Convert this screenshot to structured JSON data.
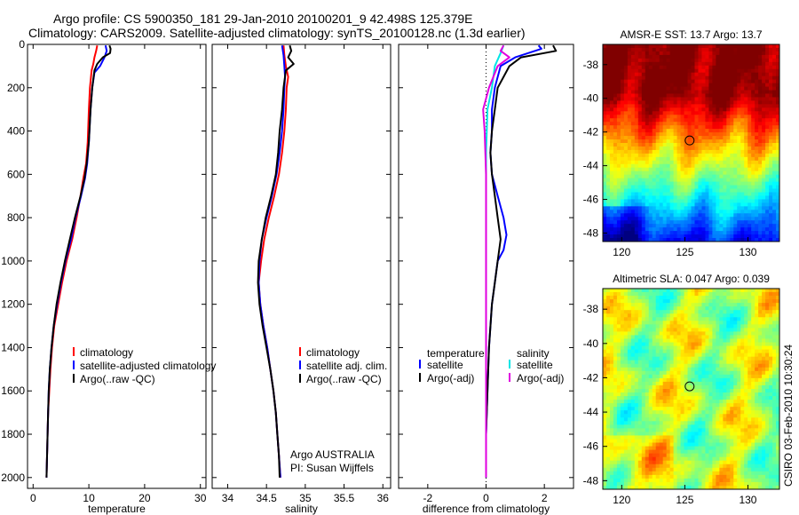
{
  "header": {
    "line1": "Argo profile: CS 5900350_181 29-Jan-2010 20100201_9 42.498S 125.379E",
    "line2": "Climatology: CARS2009. Satellite-adjusted climatology: synTS_20100128.nc (1.3d earlier)"
  },
  "footer_stamp": "CSIRO 03-Feb-2010 10:30:24",
  "colors": {
    "climatology": "#ff0000",
    "satellite": "#0000ff",
    "argo": "#000000",
    "sat_salinity": "#00e5e5",
    "argo_salinity": "#e000e0"
  },
  "chart_data": [
    {
      "type": "line",
      "id": "temperature",
      "xlabel": "temperature",
      "xlim": [
        -1,
        31
      ],
      "xticks": [
        0,
        10,
        20,
        30
      ],
      "ylim": [
        0,
        2050
      ],
      "yticks": [
        0,
        200,
        400,
        600,
        800,
        1000,
        1200,
        1400,
        1600,
        1800,
        2000
      ],
      "legend": [
        "climatology",
        "satellite-adjusted climatology",
        "Argo(..raw -QC)"
      ],
      "series": [
        {
          "name": "climatology",
          "color": "#ff0000",
          "points": [
            [
              11.5,
              5
            ],
            [
              11.3,
              30
            ],
            [
              11.0,
              60
            ],
            [
              10.8,
              90
            ],
            [
              10.5,
              120
            ],
            [
              10.2,
              200
            ],
            [
              10.0,
              300
            ],
            [
              9.8,
              450
            ],
            [
              9.5,
              550
            ],
            [
              9.0,
              620
            ],
            [
              8.5,
              700
            ],
            [
              7.8,
              800
            ],
            [
              7.0,
              900
            ],
            [
              6.0,
              1000
            ],
            [
              5.2,
              1100
            ],
            [
              4.5,
              1200
            ],
            [
              3.8,
              1300
            ],
            [
              3.4,
              1400
            ],
            [
              3.1,
              1500
            ],
            [
              2.9,
              1600
            ],
            [
              2.7,
              1700
            ],
            [
              2.6,
              1800
            ],
            [
              2.5,
              1900
            ],
            [
              2.4,
              2000
            ]
          ]
        },
        {
          "name": "satellite",
          "color": "#0000ff",
          "points": [
            [
              13.0,
              5
            ],
            [
              13.2,
              30
            ],
            [
              12.8,
              60
            ],
            [
              12.0,
              100
            ],
            [
              11.0,
              130
            ],
            [
              10.6,
              200
            ],
            [
              10.3,
              300
            ],
            [
              10.0,
              450
            ],
            [
              9.7,
              550
            ],
            [
              9.3,
              620
            ],
            [
              8.6,
              700
            ],
            [
              7.6,
              800
            ],
            [
              6.8,
              900
            ],
            [
              5.8,
              1000
            ],
            [
              5.0,
              1100
            ],
            [
              4.3,
              1200
            ],
            [
              3.7,
              1300
            ],
            [
              3.3,
              1400
            ],
            [
              3.0,
              1500
            ],
            [
              2.8,
              1600
            ],
            [
              2.7,
              1700
            ],
            [
              2.6,
              1800
            ],
            [
              2.5,
              1900
            ],
            [
              2.4,
              2000
            ]
          ]
        },
        {
          "name": "Argo(..raw -QC)",
          "color": "#000000",
          "points": [
            [
              13.7,
              5
            ],
            [
              13.9,
              20
            ],
            [
              13.8,
              40
            ],
            [
              12.5,
              60
            ],
            [
              11.5,
              90
            ],
            [
              11.0,
              120
            ],
            [
              10.6,
              200
            ],
            [
              10.3,
              300
            ],
            [
              10.0,
              450
            ],
            [
              9.6,
              550
            ],
            [
              9.2,
              620
            ],
            [
              8.5,
              700
            ],
            [
              7.5,
              800
            ],
            [
              6.6,
              900
            ],
            [
              5.7,
              1000
            ],
            [
              4.9,
              1100
            ],
            [
              4.2,
              1200
            ],
            [
              3.7,
              1300
            ],
            [
              3.3,
              1400
            ],
            [
              3.0,
              1500
            ],
            [
              2.8,
              1600
            ],
            [
              2.7,
              1700
            ],
            [
              2.6,
              1800
            ],
            [
              2.5,
              1900
            ],
            [
              2.4,
              2000
            ]
          ]
        }
      ]
    },
    {
      "type": "line",
      "id": "salinity",
      "xlabel": "salinity",
      "xlim": [
        33.8,
        36.1
      ],
      "xticks": [
        34,
        34.5,
        35,
        35.5,
        36
      ],
      "ylim": [
        0,
        2050
      ],
      "legend": [
        "climatology",
        "satellite adj. clim.",
        "Argo(..raw -QC)"
      ],
      "annotation": [
        "Argo AUSTRALIA",
        "PI: Susan Wijffels"
      ],
      "series": [
        {
          "name": "climatology",
          "color": "#ff0000",
          "points": [
            [
              34.72,
              5
            ],
            [
              34.73,
              50
            ],
            [
              34.75,
              100
            ],
            [
              34.78,
              150
            ],
            [
              34.76,
              200
            ],
            [
              34.75,
              300
            ],
            [
              34.73,
              400
            ],
            [
              34.7,
              500
            ],
            [
              34.66,
              600
            ],
            [
              34.6,
              700
            ],
            [
              34.53,
              800
            ],
            [
              34.47,
              900
            ],
            [
              34.43,
              1000
            ],
            [
              34.4,
              1100
            ],
            [
              34.42,
              1200
            ],
            [
              34.46,
              1300
            ],
            [
              34.51,
              1400
            ],
            [
              34.55,
              1500
            ],
            [
              34.59,
              1600
            ],
            [
              34.62,
              1700
            ],
            [
              34.64,
              1800
            ],
            [
              34.66,
              1900
            ],
            [
              34.68,
              2000
            ]
          ]
        },
        {
          "name": "satellite",
          "color": "#0000ff",
          "points": [
            [
              34.7,
              5
            ],
            [
              34.72,
              50
            ],
            [
              34.73,
              100
            ],
            [
              34.74,
              150
            ],
            [
              34.73,
              200
            ],
            [
              34.72,
              300
            ],
            [
              34.7,
              400
            ],
            [
              34.67,
              500
            ],
            [
              34.63,
              600
            ],
            [
              34.57,
              700
            ],
            [
              34.5,
              800
            ],
            [
              34.44,
              900
            ],
            [
              34.41,
              1000
            ],
            [
              34.4,
              1100
            ],
            [
              34.42,
              1200
            ],
            [
              34.46,
              1300
            ],
            [
              34.51,
              1400
            ],
            [
              34.55,
              1500
            ],
            [
              34.59,
              1600
            ],
            [
              34.62,
              1700
            ],
            [
              34.64,
              1800
            ],
            [
              34.66,
              1900
            ],
            [
              34.68,
              2000
            ]
          ]
        },
        {
          "name": "Argo(..raw -QC)",
          "color": "#000000",
          "points": [
            [
              34.8,
              5
            ],
            [
              34.82,
              30
            ],
            [
              34.78,
              60
            ],
            [
              34.85,
              90
            ],
            [
              34.75,
              120
            ],
            [
              34.72,
              200
            ],
            [
              34.7,
              300
            ],
            [
              34.67,
              400
            ],
            [
              34.65,
              500
            ],
            [
              34.62,
              600
            ],
            [
              34.56,
              700
            ],
            [
              34.49,
              800
            ],
            [
              34.44,
              900
            ],
            [
              34.4,
              1000
            ],
            [
              34.39,
              1100
            ],
            [
              34.41,
              1200
            ],
            [
              34.45,
              1300
            ],
            [
              34.5,
              1400
            ],
            [
              34.55,
              1500
            ],
            [
              34.59,
              1600
            ],
            [
              34.62,
              1700
            ],
            [
              34.64,
              1800
            ],
            [
              34.66,
              1900
            ],
            [
              34.67,
              2000
            ]
          ]
        }
      ]
    },
    {
      "type": "line",
      "id": "difference",
      "xlabel": "difference from climatology",
      "xlim": [
        -3,
        3
      ],
      "xticks": [
        -2,
        0,
        2
      ],
      "ylim": [
        0,
        2050
      ],
      "legend_left_title": "temperature",
      "legend_left": [
        "satellite",
        "Argo(-adj)"
      ],
      "legend_right_title": "salinity",
      "legend_right": [
        "satellite",
        "Argo(-adj)"
      ],
      "series": [
        {
          "name": "temperature satellite",
          "color": "#0000ff",
          "points": [
            [
              1.8,
              5
            ],
            [
              1.9,
              20
            ],
            [
              1.0,
              60
            ],
            [
              0.5,
              100
            ],
            [
              0.4,
              150
            ],
            [
              0.3,
              200
            ],
            [
              0.2,
              300
            ],
            [
              0.2,
              400
            ],
            [
              0.15,
              500
            ],
            [
              0.2,
              600
            ],
            [
              0.4,
              700
            ],
            [
              0.6,
              800
            ],
            [
              0.7,
              880
            ],
            [
              0.6,
              950
            ],
            [
              0.4,
              1000
            ],
            [
              0.3,
              1100
            ],
            [
              0.2,
              1200
            ],
            [
              0.1,
              1400
            ],
            [
              0.05,
              1600
            ],
            [
              0.0,
              1800
            ],
            [
              0.0,
              2000
            ]
          ]
        },
        {
          "name": "temperature Argo(-adj)",
          "color": "#000000",
          "points": [
            [
              2.3,
              5
            ],
            [
              2.4,
              30
            ],
            [
              1.2,
              60
            ],
            [
              0.8,
              100
            ],
            [
              0.6,
              150
            ],
            [
              0.4,
              200
            ],
            [
              0.3,
              300
            ],
            [
              0.2,
              400
            ],
            [
              0.15,
              500
            ],
            [
              0.2,
              600
            ],
            [
              0.3,
              700
            ],
            [
              0.4,
              800
            ],
            [
              0.5,
              900
            ],
            [
              0.4,
              1000
            ],
            [
              0.3,
              1100
            ],
            [
              0.2,
              1200
            ],
            [
              0.1,
              1400
            ],
            [
              0.05,
              1600
            ],
            [
              0.0,
              1800
            ],
            [
              0.0,
              2000
            ]
          ]
        },
        {
          "name": "salinity satellite",
          "color": "#00e5e5",
          "points": [
            [
              0.6,
              5
            ],
            [
              0.5,
              40
            ],
            [
              0.3,
              100
            ],
            [
              0.2,
              200
            ],
            [
              0.05,
              300
            ],
            [
              0.0,
              500
            ],
            [
              0.0,
              800
            ],
            [
              0.0,
              1200
            ],
            [
              0.0,
              1600
            ],
            [
              0.0,
              2000
            ]
          ]
        },
        {
          "name": "salinity Argo(-adj)",
          "color": "#e000e0",
          "points": [
            [
              0.6,
              5
            ],
            [
              0.5,
              30
            ],
            [
              0.8,
              60
            ],
            [
              0.4,
              100
            ],
            [
              0.1,
              200
            ],
            [
              -0.1,
              300
            ],
            [
              -0.05,
              400
            ],
            [
              0.0,
              600
            ],
            [
              0.0,
              1000
            ],
            [
              0.0,
              1400
            ],
            [
              0.0,
              2000
            ]
          ]
        }
      ]
    },
    {
      "type": "heatmap",
      "id": "sst",
      "title": "AMSR-E SST: 13.7 Argo: 13.7",
      "xlim": [
        118.5,
        132.5
      ],
      "xticks": [
        120,
        125,
        130
      ],
      "ylim": [
        -48.5,
        -36.8
      ],
      "yticks": [
        -38,
        -40,
        -42,
        -44,
        -46,
        -48
      ],
      "marker": [
        125.38,
        -42.5
      ]
    },
    {
      "type": "heatmap",
      "id": "sla",
      "title": "Altimetric SLA: 0.047 Argo: 0.039",
      "xlim": [
        118.5,
        132.5
      ],
      "xticks": [
        120,
        125,
        130
      ],
      "ylim": [
        -48.5,
        -36.8
      ],
      "yticks": [
        -38,
        -40,
        -42,
        -44,
        -46,
        -48
      ],
      "marker": [
        125.38,
        -42.5
      ]
    }
  ]
}
